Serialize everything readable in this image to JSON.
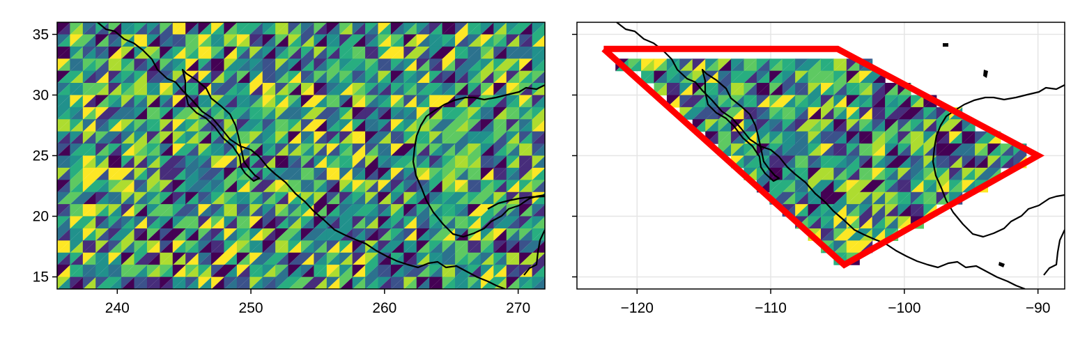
{
  "figure": {
    "panels": [
      {
        "id": "left",
        "plot_type": "filled-contour",
        "colormap": "viridis",
        "xlim": [
          235.5,
          272
        ],
        "ylim": [
          14,
          36
        ],
        "x_ticks": [
          240,
          250,
          260,
          270
        ],
        "y_ticks": [
          15,
          20,
          25,
          30,
          35
        ],
        "x_tick_labels": [
          "240",
          "250",
          "260",
          "270"
        ],
        "y_tick_labels": [
          "15",
          "20",
          "25",
          "30",
          "35"
        ],
        "grid": false,
        "coastlines": true
      },
      {
        "id": "right",
        "plot_type": "masked-filled-contour",
        "colormap": "viridis",
        "xlim": [
          -124.5,
          -88
        ],
        "ylim": [
          14,
          36
        ],
        "x_ticks": [
          -120,
          -110,
          -100,
          -90
        ],
        "y_ticks": [
          15,
          20,
          25,
          30,
          35
        ],
        "x_tick_labels": [
          "−120",
          "−110",
          "−100",
          "−90"
        ],
        "y_tick_labels": [],
        "grid": true,
        "coastlines": true,
        "polygon": {
          "color": "#ff0000",
          "vertices": [
            [
              -122.5,
              33.8
            ],
            [
              -105,
              33.8
            ],
            [
              -90,
              25
            ],
            [
              -104.5,
              16
            ],
            [
              -122.5,
              33.8
            ]
          ]
        }
      }
    ],
    "colors": {
      "viridis": [
        "#440154",
        "#472d7b",
        "#3b528b",
        "#2c728e",
        "#21918c",
        "#28ae80",
        "#5ec962",
        "#addc30",
        "#fde725"
      ],
      "coastline": "#000000",
      "grid": "#e5e5e5"
    }
  }
}
